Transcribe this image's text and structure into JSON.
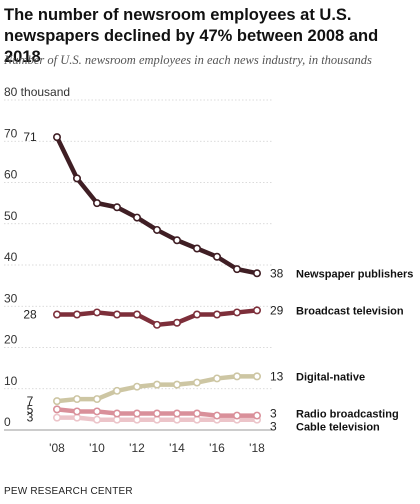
{
  "header": {
    "title": "The number of newsroom employees at U.S. newspapers declined by 47% between 2008 and 2018",
    "subtitle": "Number of U.S. newsroom employees in each news industry, in thousands"
  },
  "footer": {
    "source": "PEW RESEARCH CENTER"
  },
  "chart_data": {
    "type": "line",
    "x": [
      2008,
      2009,
      2010,
      2011,
      2012,
      2013,
      2014,
      2015,
      2016,
      2017,
      2018
    ],
    "x_tick_labels": [
      "'08",
      "'10",
      "'12",
      "'14",
      "'16",
      "'18"
    ],
    "x_tick_values": [
      2008,
      2010,
      2012,
      2014,
      2016,
      2018
    ],
    "y_ticks": [
      0,
      10,
      20,
      30,
      40,
      50,
      60,
      70
    ],
    "y_tick_labels": [
      "0",
      "10",
      "20",
      "30",
      "40",
      "50",
      "60",
      "70"
    ],
    "y_top_label": "80 thousand",
    "ylim": [
      0,
      80
    ],
    "grid": "horizontal dotted",
    "series": [
      {
        "name": "Newspaper publishers",
        "color": "#3f1e24",
        "values": [
          71,
          61,
          55,
          54,
          51.5,
          48.5,
          46,
          44,
          42,
          39,
          38
        ],
        "start_label": "71",
        "end_label": "38"
      },
      {
        "name": "Broadcast television",
        "color": "#7d2f3a",
        "values": [
          28,
          28,
          28.5,
          28,
          28,
          25.5,
          26,
          28,
          28,
          28.5,
          29
        ],
        "start_label": "28",
        "end_label": "29"
      },
      {
        "name": "Digital-native",
        "color": "#cdc6a3",
        "values": [
          7,
          7.5,
          7.5,
          9.5,
          10.5,
          11,
          11,
          11.5,
          12.5,
          13,
          13
        ],
        "start_label": "7",
        "end_label": "13"
      },
      {
        "name": "Radio broadcasting",
        "color": "#d9909a",
        "values": [
          5,
          4.5,
          4.5,
          4,
          4,
          4,
          4,
          4,
          3.5,
          3.5,
          3.5
        ],
        "start_label": "5",
        "end_label": "3"
      },
      {
        "name": "Cable television",
        "color": "#ecc4c9",
        "values": [
          3,
          3,
          2.5,
          2.5,
          2.5,
          2.5,
          2.5,
          2.5,
          2.5,
          2.5,
          2.5
        ],
        "start_label": "3",
        "end_label": "3"
      }
    ]
  }
}
